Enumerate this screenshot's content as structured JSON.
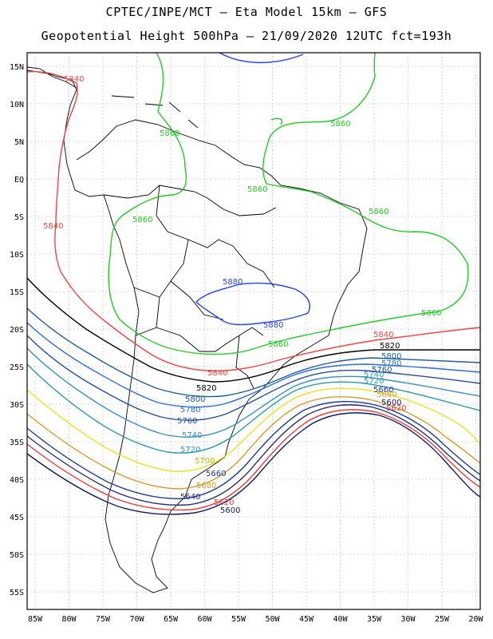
{
  "title_line1": "CPTEC/INPE/MCT –  Eta Model 15km – GFS",
  "title_line2": "Geopotential Height 500hPa – 21/09/2020 12UTC fct=193h",
  "lat_labels": [
    "15N",
    "10N",
    "5N",
    "EQ",
    "5S",
    "10S",
    "15S",
    "20S",
    "25S",
    "30S",
    "35S",
    "40S",
    "45S",
    "50S",
    "55S"
  ],
  "lon_labels": [
    "85W",
    "80W",
    "75W",
    "70W",
    "65W",
    "60W",
    "55W",
    "50W",
    "45W",
    "40W",
    "35W",
    "30W",
    "25W",
    "20W"
  ],
  "contours": [
    {
      "name": "5880",
      "color": "#2244ee",
      "labels": [
        "5880",
        "5880"
      ]
    },
    {
      "name": "5860",
      "color": "#22cc22",
      "labels": [
        "5860",
        "5860",
        "5860",
        "5860",
        "5860",
        "5860",
        "5860"
      ]
    },
    {
      "name": "5840",
      "color": "#ee4444",
      "labels": [
        "5840",
        "5840",
        "5840",
        "5840"
      ]
    },
    {
      "name": "5820",
      "color": "#000000",
      "labels": [
        "5820",
        "5820"
      ]
    },
    {
      "name": "5800",
      "color": "#1e5aa0",
      "labels": [
        "5800",
        "5800"
      ]
    },
    {
      "name": "5780",
      "color": "#2a6cd8",
      "labels": [
        "5780",
        "5780"
      ]
    },
    {
      "name": "5760",
      "color": "#1f4fa0",
      "labels": [
        "5760",
        "5760"
      ]
    },
    {
      "name": "5740",
      "color": "#3a8ec8",
      "labels": [
        "5740",
        "5740"
      ]
    },
    {
      "name": "5720",
      "color": "#2a9ab0",
      "labels": [
        "5720",
        "5720"
      ]
    },
    {
      "name": "5700",
      "color": "#f0e020",
      "labels": [
        "5700"
      ]
    },
    {
      "name": "5680",
      "color": "#d89a2a",
      "labels": [
        "5680",
        "5680"
      ]
    },
    {
      "name": "5660",
      "color": "#1a3c90",
      "labels": [
        "5660",
        "5660"
      ]
    },
    {
      "name": "5640",
      "color": "#2a3070",
      "labels": [
        "5640"
      ]
    },
    {
      "name": "5620",
      "color": "#ee3a3a",
      "labels": [
        "5620",
        "5620"
      ]
    },
    {
      "name": "5600",
      "color": "#101a60",
      "labels": [
        "5600",
        "5600"
      ]
    }
  ]
}
